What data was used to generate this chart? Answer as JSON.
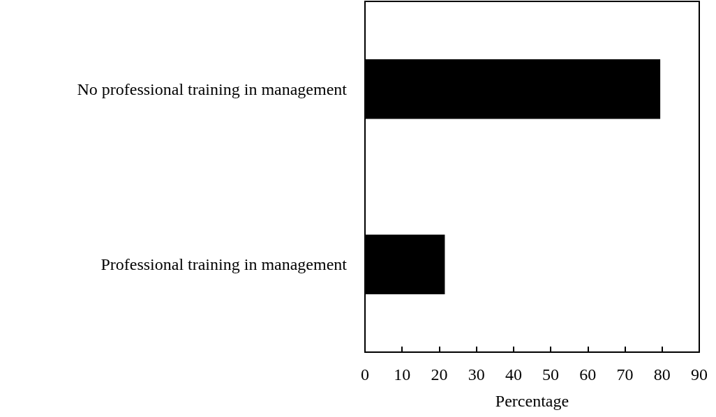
{
  "chart_data": {
    "type": "bar",
    "orientation": "horizontal",
    "xlabel": "Percentage",
    "categories": [
      "No professional training in management",
      "Professional training in management"
    ],
    "values": [
      79.5,
      21.5
    ],
    "color": "#000000",
    "xlim": [
      0,
      90
    ],
    "xticks": [
      0,
      10,
      20,
      30,
      40,
      50,
      60,
      70,
      80,
      90
    ],
    "grid": false
  }
}
